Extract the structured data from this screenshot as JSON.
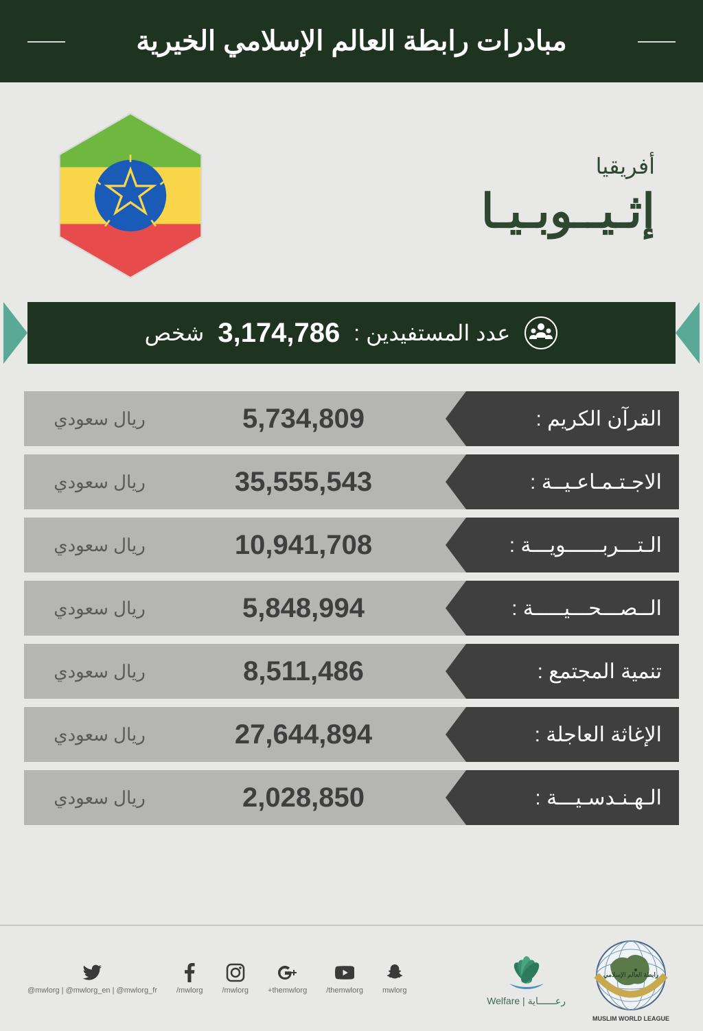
{
  "header": {
    "title": "مبادرات رابطة العالم الإسلامي الخيرية"
  },
  "country": {
    "continent": "أفريقيا",
    "name": "إثـيــوبـيـا"
  },
  "flag": {
    "top_color": "#6fb83f",
    "mid_color": "#f9d649",
    "bottom_color": "#e84b4b",
    "circle_color": "#1a5bb8",
    "star_color": "#f9d649"
  },
  "beneficiaries": {
    "label_prefix": "عدد المستفيدين :",
    "number": "3,174,786",
    "label_suffix": "شخص"
  },
  "rows": [
    {
      "label": "القرآن الكريم :",
      "value": "5,734,809",
      "currency": "ريال سعودي"
    },
    {
      "label": "الاجـتـمـاعـيــة :",
      "value": "35,555,543",
      "currency": "ريال سعودي"
    },
    {
      "label": "الـتـــربــــــويـــة :",
      "value": "10,941,708",
      "currency": "ريال سعودي"
    },
    {
      "label": "الــصـــحـــيـــــة :",
      "value": "5,848,994",
      "currency": "ريال سعودي"
    },
    {
      "label": "تنمية المجتمع :",
      "value": "8,511,486",
      "currency": "ريال سعودي"
    },
    {
      "label": "الإغاثة العاجلة :",
      "value": "27,644,894",
      "currency": "ريال سعودي"
    },
    {
      "label": "الـهـنـدسـيـــة :",
      "value": "2,028,850",
      "currency": "ريال سعودي"
    }
  ],
  "footer": {
    "socials": [
      {
        "icon": "twitter",
        "handle": "@mwlorg | @mwlorg_en | @mwlorg_fr"
      },
      {
        "icon": "facebook",
        "handle": "/mwlorg"
      },
      {
        "icon": "instagram",
        "handle": "/mwlorg"
      },
      {
        "icon": "googleplus",
        "handle": "+themwlorg"
      },
      {
        "icon": "youtube",
        "handle": "/themwlorg"
      },
      {
        "icon": "snapchat",
        "handle": "mwlorg"
      }
    ],
    "welfare_label": "Welfare | رعــــــاية",
    "mwl_label_ar": "رابطة العالم الإسلامي",
    "mwl_label_en": "MUSLIM WORLD LEAGUE"
  },
  "colors": {
    "header_bg": "#1f3420",
    "page_bg": "#e8e8e6",
    "row_label_bg": "#3f3f3f",
    "row_bg": "#b5b5b3",
    "accent_teal": "#5aa896"
  }
}
